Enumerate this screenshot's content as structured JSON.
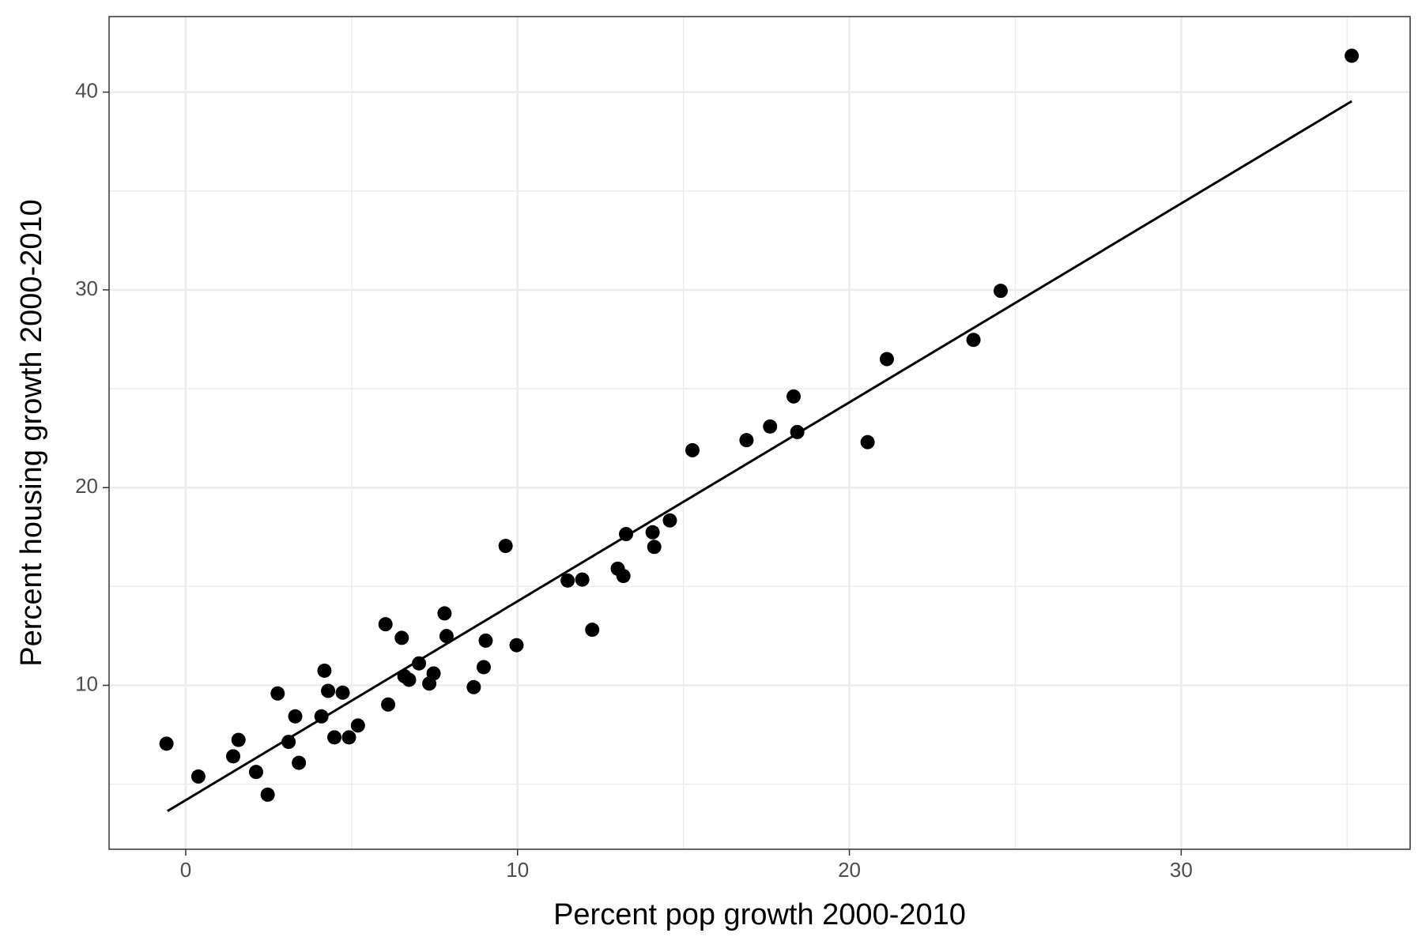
{
  "chart_data": {
    "type": "scatter",
    "x_label": "Percent pop growth 2000-2010",
    "y_label": "Percent housing growth 2000-2010",
    "xlim": [
      -2.31,
      36.9
    ],
    "ylim": [
      1.71,
      43.82
    ],
    "xticks": [
      0,
      10,
      20,
      30
    ],
    "yticks": [
      10,
      20,
      30,
      40
    ],
    "xminorticks": [
      5,
      15,
      25,
      35
    ],
    "yminorticks": [
      5,
      15,
      25,
      35
    ],
    "grid": true,
    "color": "#000000",
    "x": [
      -0.58,
      0.38,
      1.43,
      1.59,
      2.12,
      2.47,
      2.77,
      3.1,
      3.3,
      3.41,
      4.09,
      4.18,
      4.29,
      4.48,
      4.73,
      4.92,
      5.19,
      6.02,
      6.1,
      6.51,
      6.59,
      6.73,
      7.03,
      7.34,
      7.47,
      7.8,
      7.86,
      8.68,
      8.98,
      9.04,
      9.64,
      9.97,
      11.51,
      11.95,
      12.25,
      13.02,
      13.19,
      13.27,
      14.07,
      14.12,
      14.59,
      15.27,
      16.9,
      17.61,
      18.32,
      18.43,
      20.55,
      21.13,
      23.74,
      24.56,
      35.14
    ],
    "values": [
      7.05,
      5.39,
      6.41,
      7.24,
      5.62,
      4.47,
      9.59,
      7.14,
      8.43,
      6.08,
      8.43,
      10.74,
      9.72,
      7.37,
      9.63,
      7.37,
      7.97,
      13.09,
      9.03,
      12.4,
      10.46,
      10.28,
      11.11,
      10.09,
      10.6,
      13.64,
      12.49,
      9.91,
      10.92,
      12.26,
      17.05,
      12.03,
      15.3,
      15.35,
      12.81,
      15.9,
      15.53,
      17.65,
      17.74,
      17.0,
      18.34,
      21.89,
      22.4,
      23.09,
      24.61,
      22.81,
      22.3,
      26.5,
      27.47,
      29.95,
      41.84
    ],
    "fit": {
      "x": [
        -0.55,
        35.14
      ],
      "y": [
        3.64,
        39.54
      ],
      "color": "#000000"
    }
  }
}
